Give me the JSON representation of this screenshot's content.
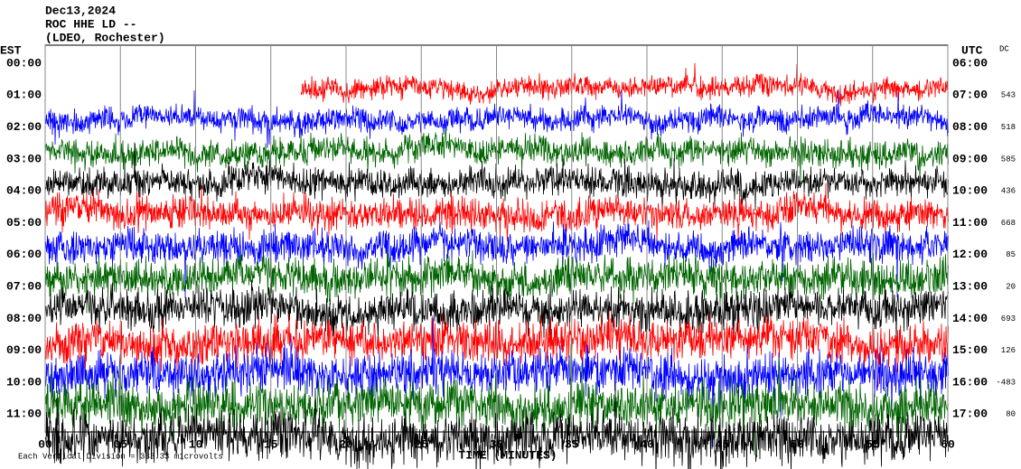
{
  "chart_data": {
    "type": "helicorder",
    "title_lines": [
      "Dec13,2024",
      "ROC HHE LD --",
      "(LDEO, Rochester)"
    ],
    "left_axis_title": "EST",
    "right_axis_title": "UTC",
    "dc_title": "DC",
    "x_label": "TIME (MINUTES)",
    "footer": "Each Vertical Division = 333.33 microvolts",
    "xlim": [
      0,
      60
    ],
    "xticks": [
      {
        "value": 0,
        "label": "00"
      },
      {
        "value": 5,
        "label": "05"
      },
      {
        "value": 10,
        "label": "10"
      },
      {
        "value": 15,
        "label": "15"
      },
      {
        "value": 20,
        "label": "20"
      },
      {
        "value": 25,
        "label": "25"
      },
      {
        "value": 30,
        "label": "30"
      },
      {
        "value": 35,
        "label": "35"
      },
      {
        "value": 40,
        "label": "40"
      },
      {
        "value": 45,
        "label": "45"
      },
      {
        "value": 50,
        "label": "50"
      },
      {
        "value": 55,
        "label": "55"
      },
      {
        "value": 60,
        "label": "60"
      }
    ],
    "grid": true,
    "rows": [
      {
        "est": "00:00",
        "utc": "06:00",
        "dc": null,
        "color": "#ff0000",
        "start": 17
      },
      {
        "est": "01:00",
        "utc": "07:00",
        "dc": 543,
        "color": "#0000ff",
        "start": 0
      },
      {
        "est": "02:00",
        "utc": "08:00",
        "dc": 518,
        "color": "#006400",
        "start": 0
      },
      {
        "est": "03:00",
        "utc": "09:00",
        "dc": 585,
        "color": "#000000",
        "start": 0
      },
      {
        "est": "04:00",
        "utc": "10:00",
        "dc": 436,
        "color": "#ff0000",
        "start": 0
      },
      {
        "est": "05:00",
        "utc": "11:00",
        "dc": 668,
        "color": "#0000ff",
        "start": 0
      },
      {
        "est": "06:00",
        "utc": "12:00",
        "dc": 85,
        "color": "#006400",
        "start": 0
      },
      {
        "est": "07:00",
        "utc": "13:00",
        "dc": 20,
        "color": "#000000",
        "start": 0
      },
      {
        "est": "08:00",
        "utc": "14:00",
        "dc": 693,
        "color": "#ff0000",
        "start": 0
      },
      {
        "est": "09:00",
        "utc": "15:00",
        "dc": 126,
        "color": "#0000ff",
        "start": 0
      },
      {
        "est": "10:00",
        "utc": "16:00",
        "dc": -483,
        "color": "#006400",
        "start": 0
      },
      {
        "est": "11:00",
        "utc": "17:00",
        "dc": 80,
        "color": "#000000",
        "start": 0
      }
    ]
  }
}
